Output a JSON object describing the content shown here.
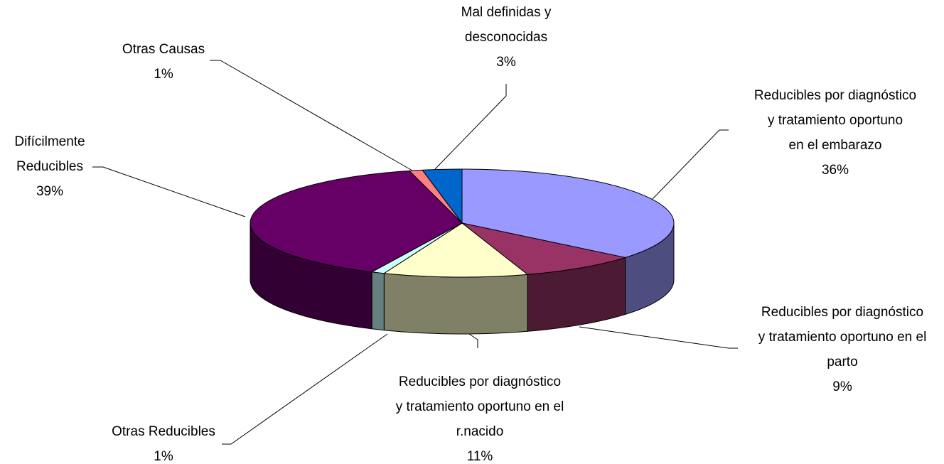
{
  "chart_data": {
    "type": "pie3d",
    "categories": [
      "Reducibles por diagnóstico\ny  tratamiento oportuno\nen el embarazo",
      "Reducibles por diagnóstico\ny tratamiento oportuno en el\nparto",
      "Reducibles por diagnóstico\ny tratamiento oportuno en el\nr.nacido",
      "Otras Reducibles",
      "Difícilmente\nReducibles",
      "Otras Causas",
      "Mal definidas y\ndesconocidas"
    ],
    "values": [
      36,
      9,
      11,
      1,
      39,
      1,
      3
    ],
    "value_labels": [
      "36%",
      "9%",
      "11%",
      "1%",
      "39%",
      "1%",
      "3%"
    ],
    "colors": [
      "#9999ff",
      "#993366",
      "#ffffcc",
      "#ccffff",
      "#660066",
      "#ff8080",
      "#0066cc"
    ]
  }
}
